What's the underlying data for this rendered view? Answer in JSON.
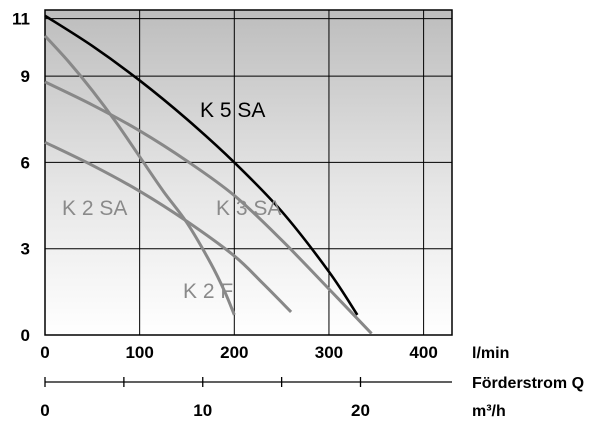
{
  "chart_data": {
    "type": "line",
    "xlabel": "Förderstrom Q",
    "x_unit_primary": "l/min",
    "x_unit_secondary": "m³/h",
    "x_ticks_primary": [
      0,
      100,
      200,
      300,
      400
    ],
    "x_ticks_secondary": [
      0,
      10,
      20
    ],
    "xlim": [
      0,
      430
    ],
    "y_ticks": [
      0,
      3,
      6,
      9,
      11
    ],
    "ylim": [
      0,
      11.3
    ],
    "grid": true,
    "series": [
      {
        "name": "K 5 SA",
        "color": "#000000",
        "points": [
          [
            0,
            11.1
          ],
          [
            50,
            10.05
          ],
          [
            100,
            8.85
          ],
          [
            150,
            7.5
          ],
          [
            200,
            6.0
          ],
          [
            250,
            4.3
          ],
          [
            300,
            2.2
          ],
          [
            330,
            0.7
          ]
        ]
      },
      {
        "name": "K 3 SA",
        "color": "#888888",
        "points": [
          [
            0,
            8.8
          ],
          [
            50,
            8.0
          ],
          [
            100,
            7.1
          ],
          [
            150,
            6.05
          ],
          [
            200,
            4.85
          ],
          [
            250,
            3.3
          ],
          [
            300,
            1.6
          ],
          [
            345,
            0.05
          ]
        ]
      },
      {
        "name": "K 2 SA",
        "color": "#888888",
        "points": [
          [
            0,
            6.7
          ],
          [
            50,
            5.9
          ],
          [
            100,
            5.0
          ],
          [
            150,
            3.95
          ],
          [
            200,
            2.75
          ],
          [
            230,
            1.8
          ],
          [
            260,
            0.8
          ]
        ]
      },
      {
        "name": "K 2 F",
        "color": "#888888",
        "points": [
          [
            0,
            10.4
          ],
          [
            25,
            9.5
          ],
          [
            50,
            8.5
          ],
          [
            75,
            7.4
          ],
          [
            100,
            6.2
          ],
          [
            125,
            5.0
          ],
          [
            150,
            3.9
          ],
          [
            175,
            2.5
          ],
          [
            190,
            1.5
          ],
          [
            200,
            0.7
          ]
        ]
      }
    ]
  }
}
